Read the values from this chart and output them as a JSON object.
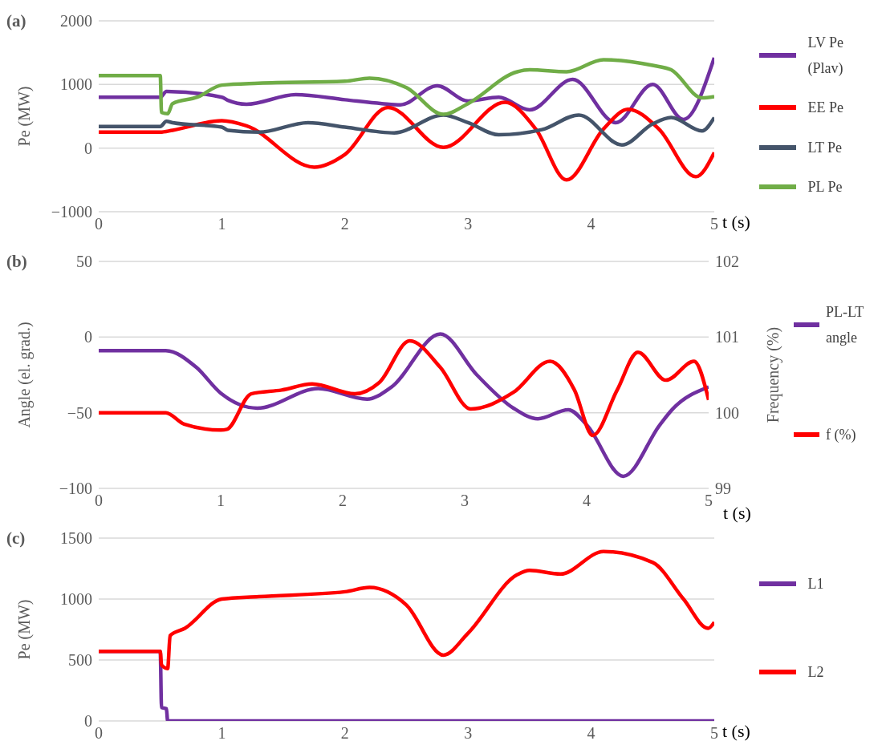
{
  "chart_data": [
    {
      "type": "line",
      "title": "(a)",
      "xlabel": "t (s)",
      "ylabel": "Pe (MW)",
      "xlim": [
        0,
        5
      ],
      "xticks": [
        0,
        1,
        2,
        3,
        4,
        5
      ],
      "ylim": [
        -1000,
        2000
      ],
      "yticks": [
        -1000,
        0,
        1000,
        2000
      ],
      "grid": "y",
      "legend": "right",
      "marker": "none",
      "line_style": "solid",
      "series": [
        {
          "name": "LV Pe (Plav)",
          "color": "#7030a0",
          "x": [
            0,
            0.5,
            0.55,
            1.0,
            1.05,
            1.2,
            1.6,
            2.0,
            2.3,
            2.45,
            2.75,
            3.0,
            3.25,
            3.5,
            3.85,
            4.2,
            4.5,
            4.75,
            5
          ],
          "values": [
            800,
            800,
            890,
            800,
            750,
            690,
            840,
            760,
            700,
            680,
            980,
            740,
            800,
            600,
            1080,
            400,
            1000,
            450,
            1420
          ]
        },
        {
          "name": "EE Pe",
          "color": "#ff0000",
          "x": [
            0,
            0.5,
            0.6,
            1.0,
            1.2,
            1.75,
            2.0,
            2.35,
            2.8,
            3.3,
            3.55,
            3.8,
            4.1,
            4.3,
            4.55,
            4.85,
            5
          ],
          "values": [
            250,
            250,
            280,
            430,
            350,
            -300,
            -100,
            640,
            10,
            720,
            300,
            -500,
            300,
            610,
            300,
            -450,
            -70
          ]
        },
        {
          "name": "LT Pe",
          "color": "#44546a",
          "x": [
            0,
            0.5,
            0.55,
            0.6,
            1.0,
            1.05,
            1.3,
            1.7,
            2.0,
            2.4,
            2.8,
            3.0,
            3.25,
            3.6,
            3.9,
            4.25,
            4.5,
            4.65,
            4.9,
            5
          ],
          "values": [
            340,
            340,
            420,
            400,
            330,
            280,
            250,
            400,
            330,
            240,
            520,
            400,
            210,
            290,
            520,
            50,
            380,
            480,
            270,
            480
          ]
        },
        {
          "name": "PL Pe",
          "color": "#70ad47",
          "x": [
            0,
            0.5,
            0.51,
            0.56,
            0.6,
            0.8,
            1.0,
            1.3,
            2.0,
            2.2,
            2.5,
            2.8,
            3.0,
            3.4,
            3.5,
            3.8,
            4.1,
            4.5,
            4.65,
            4.9,
            5
          ],
          "values": [
            1140,
            1140,
            560,
            540,
            700,
            800,
            990,
            1020,
            1050,
            1100,
            950,
            530,
            700,
            1200,
            1230,
            1200,
            1390,
            1300,
            1230,
            790,
            810
          ]
        }
      ]
    },
    {
      "type": "line",
      "title": "(b)",
      "xlabel": "t (s)",
      "ylabel": "Angle (el. grad.)",
      "y2label": "Frequency (%)",
      "xlim": [
        0,
        5
      ],
      "xticks": [
        0,
        1,
        2,
        3,
        4,
        5
      ],
      "ylim": [
        -100,
        50
      ],
      "yticks": [
        -100,
        -50,
        0,
        50
      ],
      "y2lim": [
        99,
        102
      ],
      "y2ticks": [
        99,
        100,
        101,
        102
      ],
      "grid": "y",
      "legend": "right",
      "marker": "none",
      "line_style": "solid",
      "series": [
        {
          "name": "PL-LT angle",
          "color": "#7030a0",
          "x": [
            0,
            0.55,
            0.8,
            1.0,
            1.3,
            1.8,
            2.2,
            2.4,
            2.8,
            3.1,
            3.4,
            3.6,
            3.85,
            4.0,
            4.3,
            4.6,
            4.7,
            5
          ],
          "values": [
            -9,
            -9,
            -20,
            -37,
            -47,
            -34,
            -41,
            -33,
            2,
            -25,
            -47,
            -54,
            -48,
            -58,
            -92,
            -58,
            -48,
            -33
          ]
        },
        {
          "name": "f (%)",
          "color": "#ff0000",
          "axis": "y2",
          "x": [
            0,
            0.55,
            0.7,
            1.0,
            1.05,
            1.25,
            1.5,
            1.75,
            2.1,
            2.3,
            2.55,
            2.8,
            3.05,
            3.4,
            3.7,
            3.9,
            4.05,
            4.25,
            4.42,
            4.65,
            4.88,
            5
          ],
          "values": [
            100,
            100,
            99.85,
            99.77,
            99.78,
            100.25,
            100.3,
            100.38,
            100.25,
            100.4,
            100.95,
            100.6,
            100.05,
            100.27,
            100.68,
            100.3,
            99.7,
            100.3,
            100.8,
            100.43,
            100.68,
            100.17
          ]
        }
      ]
    },
    {
      "type": "line",
      "title": "(c)",
      "xlabel": "t (s)",
      "ylabel": "Pe (MW)",
      "xlim": [
        0,
        5
      ],
      "xticks": [
        0,
        1,
        2,
        3,
        4,
        5
      ],
      "ylim": [
        0,
        1500
      ],
      "yticks": [
        0,
        500,
        1000,
        1500
      ],
      "grid": "y",
      "legend": "right",
      "marker": "none",
      "line_style": "solid",
      "series": [
        {
          "name": "L1",
          "color": "#7030a0",
          "x": [
            0,
            0.5,
            0.51,
            0.55,
            0.56,
            5
          ],
          "values": [
            570,
            570,
            110,
            100,
            0,
            0
          ]
        },
        {
          "name": "L2",
          "color": "#ff0000",
          "x": [
            0,
            0.5,
            0.51,
            0.56,
            0.58,
            0.7,
            1.0,
            1.3,
            2.0,
            2.2,
            2.5,
            2.8,
            3.0,
            3.4,
            3.5,
            3.75,
            4.1,
            4.5,
            4.75,
            4.95,
            5
          ],
          "values": [
            570,
            570,
            460,
            430,
            700,
            760,
            1000,
            1020,
            1060,
            1095,
            950,
            540,
            720,
            1200,
            1235,
            1205,
            1390,
            1300,
            1000,
            760,
            810
          ]
        }
      ]
    }
  ]
}
